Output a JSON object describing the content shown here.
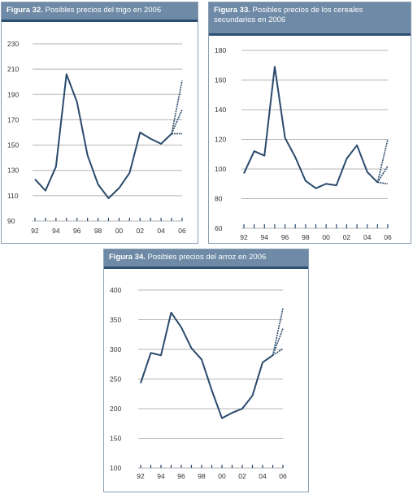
{
  "colors": {
    "line": "#2a4a6c",
    "grid": "#b4b4b4",
    "header_bg": "#6e8aa6",
    "header_accent": "#2d4f70"
  },
  "figures": [
    {
      "prefix": "Figura 32.",
      "title": "Posibles precios del trigo en 2006"
    },
    {
      "prefix": "Figura 33.",
      "title": "Posibles precios de los cereales secundarios en 2006"
    },
    {
      "prefix": "Figura 34.",
      "title": "Posibles precios del arroz en 2006"
    }
  ],
  "chart_data": [
    {
      "type": "line",
      "title": "Figura 32. Posibles precios del trigo en 2006",
      "ylim": [
        90,
        230
      ],
      "yticks": [
        90,
        110,
        130,
        150,
        170,
        190,
        210,
        230
      ],
      "xlim": [
        1992,
        2006
      ],
      "xtick_labels": [
        {
          "x": 1992,
          "label": "92"
        },
        {
          "x": 1994,
          "label": "94"
        },
        {
          "x": 1996,
          "label": "96"
        },
        {
          "x": 1998,
          "label": "98"
        },
        {
          "x": 2000,
          "label": "00"
        },
        {
          "x": 2002,
          "label": "02"
        },
        {
          "x": 2004,
          "label": "04"
        },
        {
          "x": 2006,
          "label": "06"
        }
      ],
      "series": [
        {
          "values": [
            [
              1992,
              123
            ],
            [
              1993,
              114
            ],
            [
              1994,
              133
            ],
            [
              1995,
              206
            ],
            [
              1996,
              184
            ],
            [
              1997,
              142
            ],
            [
              1998,
              119
            ],
            [
              1999,
              108
            ],
            [
              2000,
              116
            ],
            [
              2001,
              128
            ],
            [
              2002,
              160
            ],
            [
              2003,
              155
            ],
            [
              2004,
              151
            ],
            [
              2005,
              159
            ]
          ]
        }
      ],
      "projections": [
        {
          "values": [
            [
              2005,
              159
            ],
            [
              2006,
              201
            ]
          ]
        },
        {
          "values": [
            [
              2005,
              159
            ],
            [
              2006,
              178
            ]
          ]
        },
        {
          "values": [
            [
              2005,
              159
            ],
            [
              2006,
              159
            ]
          ]
        }
      ]
    },
    {
      "type": "line",
      "title": "Figura 33. Posibles precios de los cereales secundarios en 2006",
      "ylim": [
        60,
        180
      ],
      "yticks": [
        60,
        80,
        100,
        120,
        140,
        160,
        180
      ],
      "xlim": [
        1992,
        2006
      ],
      "xtick_labels": [
        {
          "x": 1992,
          "label": "92"
        },
        {
          "x": 1994,
          "label": "94"
        },
        {
          "x": 1996,
          "label": "96"
        },
        {
          "x": 1998,
          "label": "98"
        },
        {
          "x": 2000,
          "label": "00"
        },
        {
          "x": 2002,
          "label": "02"
        },
        {
          "x": 2004,
          "label": "04"
        },
        {
          "x": 2006,
          "label": "06"
        }
      ],
      "series": [
        {
          "values": [
            [
              1992,
              97
            ],
            [
              1993,
              112
            ],
            [
              1994,
              109
            ],
            [
              1995,
              169
            ],
            [
              1996,
              121
            ],
            [
              1997,
              108
            ],
            [
              1998,
              92
            ],
            [
              1999,
              87
            ],
            [
              2000,
              90
            ],
            [
              2001,
              89
            ],
            [
              2002,
              107
            ],
            [
              2003,
              116
            ],
            [
              2004,
              98
            ],
            [
              2005,
              91
            ]
          ]
        }
      ],
      "projections": [
        {
          "values": [
            [
              2005,
              91
            ],
            [
              2006,
              120
            ]
          ]
        },
        {
          "values": [
            [
              2005,
              91
            ],
            [
              2006,
              102
            ]
          ]
        },
        {
          "values": [
            [
              2005,
              91
            ],
            [
              2006,
              90
            ]
          ]
        }
      ]
    },
    {
      "type": "line",
      "title": "Figura 34. Posibles precios del arroz en 2006",
      "ylim": [
        100,
        400
      ],
      "yticks": [
        100,
        150,
        200,
        250,
        300,
        350,
        400
      ],
      "xlim": [
        1992,
        2006
      ],
      "xtick_labels": [
        {
          "x": 1992,
          "label": "92"
        },
        {
          "x": 1994,
          "label": "94"
        },
        {
          "x": 1996,
          "label": "96"
        },
        {
          "x": 1998,
          "label": "98"
        },
        {
          "x": 2000,
          "label": "00"
        },
        {
          "x": 2002,
          "label": "02"
        },
        {
          "x": 2004,
          "label": "04"
        },
        {
          "x": 2006,
          "label": "06"
        }
      ],
      "series": [
        {
          "values": [
            [
              1992,
              243
            ],
            [
              1993,
              294
            ],
            [
              1994,
              290
            ],
            [
              1995,
              362
            ],
            [
              1996,
              337
            ],
            [
              1997,
              302
            ],
            [
              1998,
              283
            ],
            [
              1999,
              231
            ],
            [
              2000,
              184
            ],
            [
              2001,
              193
            ],
            [
              2002,
              200
            ],
            [
              2003,
              222
            ],
            [
              2004,
              278
            ],
            [
              2005,
              290
            ]
          ]
        }
      ],
      "projections": [
        {
          "values": [
            [
              2005,
              290
            ],
            [
              2006,
              369
            ]
          ]
        },
        {
          "values": [
            [
              2005,
              290
            ],
            [
              2006,
              335
            ]
          ]
        },
        {
          "values": [
            [
              2005,
              290
            ],
            [
              2006,
              301
            ]
          ]
        }
      ]
    }
  ]
}
